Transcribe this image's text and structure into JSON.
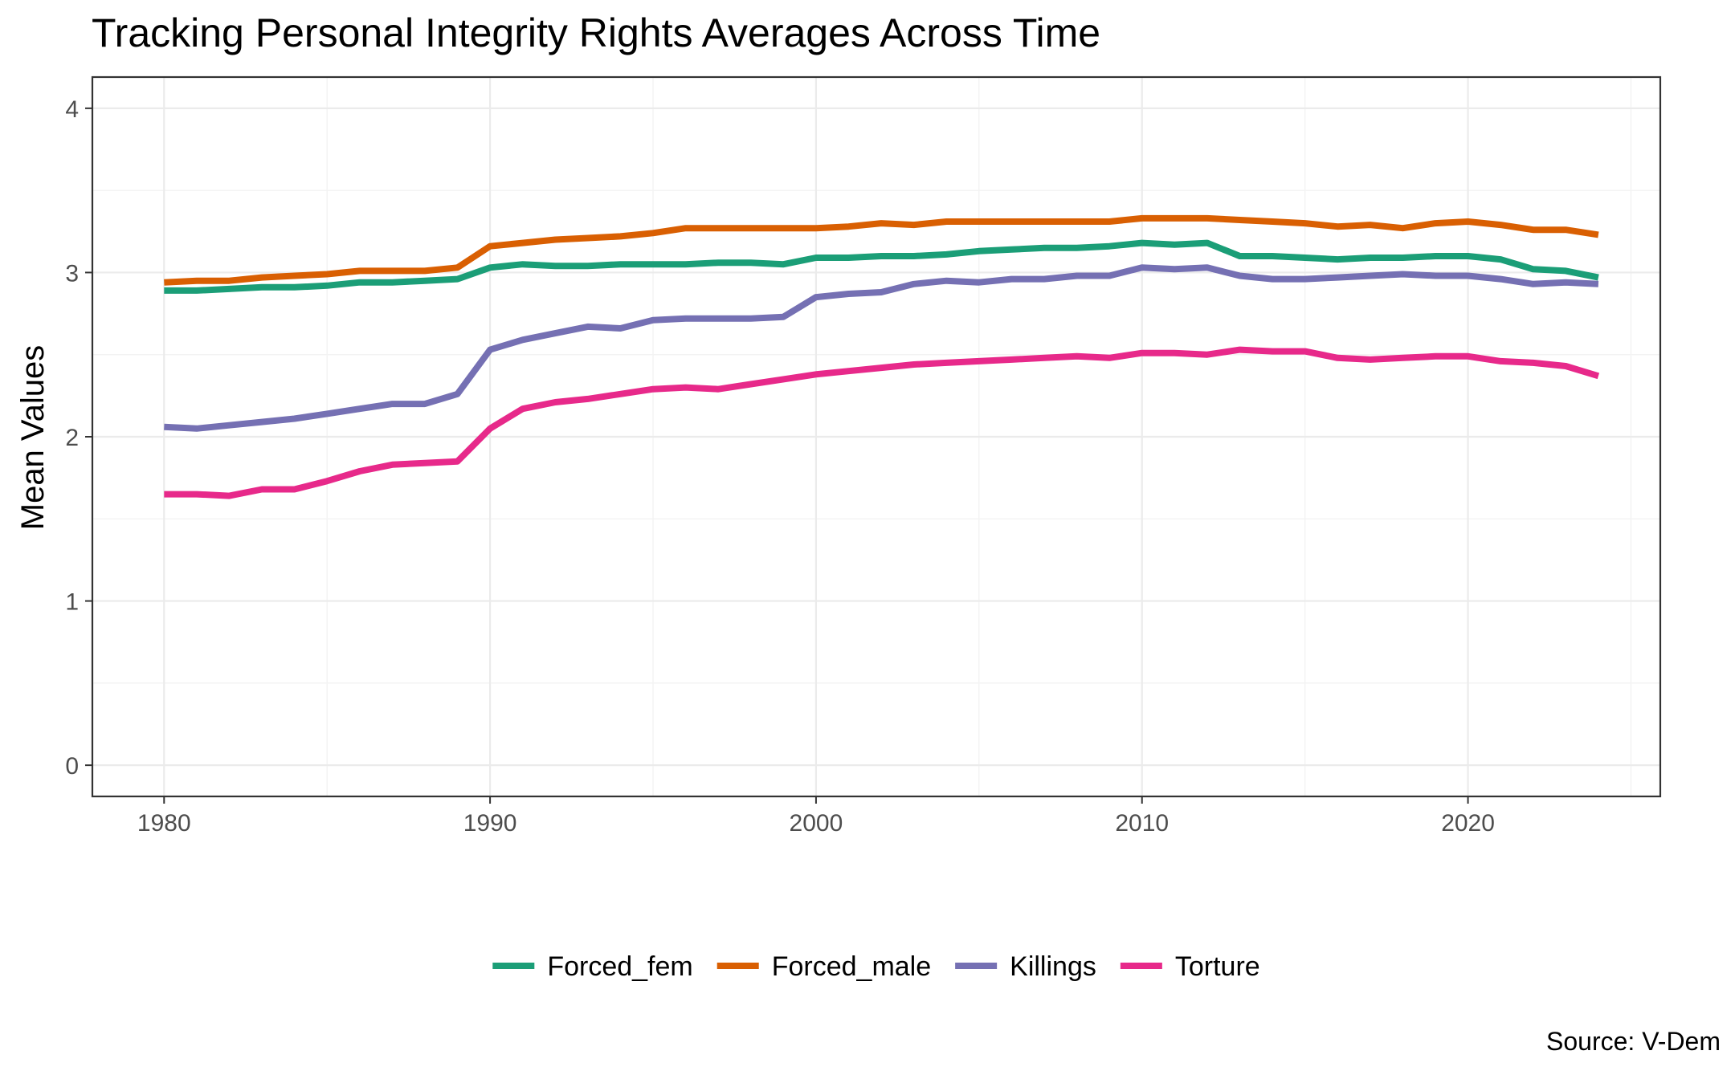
{
  "chart_data": {
    "type": "line",
    "title": "Tracking Personal Integrity Rights Averages Across Time",
    "xlabel": "",
    "ylabel": "Mean Values",
    "caption": "Source: V-Dem",
    "xlim": [
      1977.8,
      2025.9
    ],
    "ylim": [
      -0.19,
      4.19
    ],
    "x_ticks": [
      1980,
      1990,
      2000,
      2010,
      2020
    ],
    "y_ticks": [
      0,
      1,
      2,
      3,
      4
    ],
    "grid": true,
    "legend_position": "bottom",
    "x": [
      1980,
      1981,
      1982,
      1983,
      1984,
      1985,
      1986,
      1987,
      1988,
      1989,
      1990,
      1991,
      1992,
      1993,
      1994,
      1995,
      1996,
      1997,
      1998,
      1999,
      2000,
      2001,
      2002,
      2003,
      2004,
      2005,
      2006,
      2007,
      2008,
      2009,
      2010,
      2011,
      2012,
      2013,
      2014,
      2015,
      2016,
      2017,
      2018,
      2019,
      2020,
      2021,
      2022,
      2023,
      2024
    ],
    "series": [
      {
        "name": "Forced_fem",
        "color": "#1b9e77",
        "values": [
          2.89,
          2.89,
          2.9,
          2.91,
          2.91,
          2.92,
          2.94,
          2.94,
          2.95,
          2.96,
          3.03,
          3.05,
          3.04,
          3.04,
          3.05,
          3.05,
          3.05,
          3.06,
          3.06,
          3.05,
          3.09,
          3.09,
          3.1,
          3.1,
          3.11,
          3.13,
          3.14,
          3.15,
          3.15,
          3.16,
          3.18,
          3.17,
          3.18,
          3.1,
          3.1,
          3.09,
          3.08,
          3.09,
          3.09,
          3.1,
          3.1,
          3.08,
          3.02,
          3.01,
          2.97
        ]
      },
      {
        "name": "Forced_male",
        "color": "#d95f02",
        "values": [
          2.94,
          2.95,
          2.95,
          2.97,
          2.98,
          2.99,
          3.01,
          3.01,
          3.01,
          3.03,
          3.16,
          3.18,
          3.2,
          3.21,
          3.22,
          3.24,
          3.27,
          3.27,
          3.27,
          3.27,
          3.27,
          3.28,
          3.3,
          3.29,
          3.31,
          3.31,
          3.31,
          3.31,
          3.31,
          3.31,
          3.33,
          3.33,
          3.33,
          3.32,
          3.31,
          3.3,
          3.28,
          3.29,
          3.27,
          3.3,
          3.31,
          3.29,
          3.26,
          3.26,
          3.23
        ]
      },
      {
        "name": "Killings",
        "color": "#7570b3",
        "values": [
          2.06,
          2.05,
          2.07,
          2.09,
          2.11,
          2.14,
          2.17,
          2.2,
          2.2,
          2.26,
          2.53,
          2.59,
          2.63,
          2.67,
          2.66,
          2.71,
          2.72,
          2.72,
          2.72,
          2.73,
          2.85,
          2.87,
          2.88,
          2.93,
          2.95,
          2.94,
          2.96,
          2.96,
          2.98,
          2.98,
          3.03,
          3.02,
          3.03,
          2.98,
          2.96,
          2.96,
          2.97,
          2.98,
          2.99,
          2.98,
          2.98,
          2.96,
          2.93,
          2.94,
          2.93
        ]
      },
      {
        "name": "Torture",
        "color": "#e7298a",
        "values": [
          1.65,
          1.65,
          1.64,
          1.68,
          1.68,
          1.73,
          1.79,
          1.83,
          1.84,
          1.85,
          2.05,
          2.17,
          2.21,
          2.23,
          2.26,
          2.29,
          2.3,
          2.29,
          2.32,
          2.35,
          2.38,
          2.4,
          2.42,
          2.44,
          2.45,
          2.46,
          2.47,
          2.48,
          2.49,
          2.48,
          2.51,
          2.51,
          2.5,
          2.53,
          2.52,
          2.52,
          2.48,
          2.47,
          2.48,
          2.49,
          2.49,
          2.46,
          2.45,
          2.43,
          2.37
        ]
      }
    ]
  }
}
